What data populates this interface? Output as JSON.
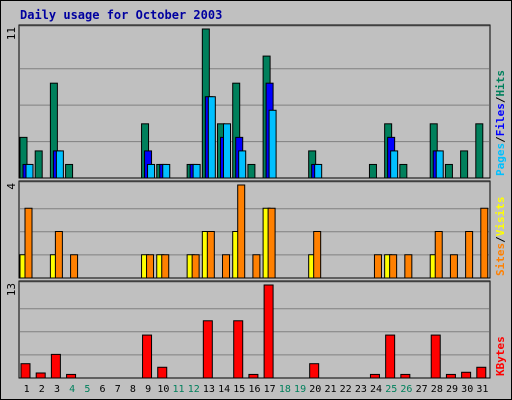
{
  "chart_data": {
    "type": "bar",
    "title": "Daily usage for October 2003",
    "days": [
      "1",
      "2",
      "3",
      "4",
      "5",
      "6",
      "7",
      "8",
      "9",
      "10",
      "11",
      "12",
      "13",
      "14",
      "15",
      "16",
      "17",
      "18",
      "19",
      "20",
      "21",
      "22",
      "23",
      "24",
      "25",
      "26",
      "27",
      "28",
      "29",
      "30",
      "31"
    ],
    "weekend_days": [
      "4",
      "5",
      "11",
      "12",
      "18",
      "19",
      "25",
      "26"
    ],
    "colors": {
      "hits": "#00805c",
      "files": "#0000ff",
      "pages": "#00c0ff",
      "visits": "#ffff00",
      "sites": "#ff8000",
      "kbytes": "#ff0000",
      "weekday_label": "#000000",
      "weekend_label": "#00805c",
      "title": "#0000a0"
    },
    "panels": [
      {
        "name": "hits-files-pages",
        "max_label": "11",
        "ymax": 11,
        "legend": [
          {
            "text": "Pages",
            "color": "#00c0ff"
          },
          {
            "text": "Files",
            "color": "#0000ff"
          },
          {
            "text": "Hits",
            "color": "#00805c"
          }
        ],
        "series": [
          {
            "name": "Hits",
            "color": "#00805c",
            "values": [
              3,
              2,
              7,
              1,
              0,
              0,
              0,
              0,
              4,
              1,
              0,
              1,
              11,
              4,
              7,
              1,
              9,
              0,
              0,
              2,
              0,
              0,
              0,
              1,
              4,
              1,
              0,
              4,
              1,
              2,
              4
            ]
          },
          {
            "name": "Files",
            "color": "#0000ff",
            "values": [
              1,
              0,
              2,
              0,
              0,
              0,
              0,
              0,
              2,
              1,
              0,
              1,
              6,
              3,
              3,
              0,
              7,
              0,
              0,
              1,
              0,
              0,
              0,
              0,
              3,
              0,
              0,
              2,
              0,
              0,
              0
            ]
          },
          {
            "name": "Pages",
            "color": "#00c0ff",
            "values": [
              1,
              0,
              2,
              0,
              0,
              0,
              0,
              0,
              1,
              1,
              0,
              1,
              6,
              4,
              2,
              0,
              5,
              0,
              0,
              1,
              0,
              0,
              0,
              0,
              2,
              0,
              0,
              2,
              0,
              0,
              0
            ]
          }
        ]
      },
      {
        "name": "visits-sites",
        "max_label": "4",
        "ymax": 4,
        "legend": [
          {
            "text": "Sites",
            "color": "#ff8000"
          },
          {
            "text": "Visits",
            "color": "#ffff00"
          }
        ],
        "series": [
          {
            "name": "Visits",
            "color": "#ffff00",
            "values": [
              1,
              0,
              1,
              0,
              0,
              0,
              0,
              0,
              1,
              1,
              0,
              1,
              2,
              0,
              2,
              0,
              3,
              0,
              0,
              1,
              0,
              0,
              0,
              0,
              1,
              0,
              0,
              1,
              0,
              0,
              0
            ]
          },
          {
            "name": "Sites",
            "color": "#ff8000",
            "values": [
              3,
              0,
              2,
              1,
              0,
              0,
              0,
              0,
              1,
              1,
              0,
              1,
              2,
              1,
              4,
              1,
              3,
              0,
              0,
              2,
              0,
              0,
              0,
              1,
              1,
              1,
              0,
              2,
              1,
              2,
              3
            ]
          }
        ]
      },
      {
        "name": "kbytes",
        "max_label": "13",
        "ymax": 13,
        "legend": [
          {
            "text": "KBytes",
            "color": "#ff0000"
          }
        ],
        "series": [
          {
            "name": "KBytes",
            "color": "#ff0000",
            "values": [
              2,
              0.7,
              3.3,
              0.5,
              0,
              0,
              0,
              0,
              6,
              1.5,
              0,
              0,
              8,
              0,
              8,
              0.5,
              13,
              0,
              0,
              2,
              0,
              0,
              0,
              0.5,
              6,
              0.5,
              0,
              6,
              0.5,
              0.8,
              1.5
            ]
          }
        ]
      }
    ]
  }
}
